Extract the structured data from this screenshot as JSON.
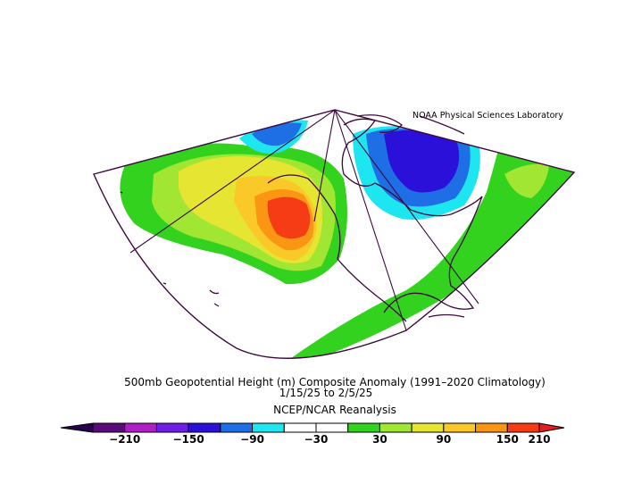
{
  "credit": "NOAA Physical Sciences Laboratory",
  "title_line1": "500mb Geopotential Height (m) Composite Anomaly (1991–2020 Climatology)",
  "title_line2": "1/15/25  to 2/5/25",
  "title_line3": "NCEP/NCAR Reanalysis",
  "colorbar": {
    "colors": [
      "#5a0a7a",
      "#b01ec8",
      "#6e1ee6",
      "#2a10d8",
      "#1e6ee6",
      "#1ee6f0",
      "#ffffff",
      "#ffffff",
      "#32d21e",
      "#a0e632",
      "#e6e632",
      "#fac828",
      "#fa9614",
      "#f53c14"
    ],
    "low_color": "#2a0050",
    "high_color": "#e61e1e",
    "tick_labels": [
      "−210",
      "−150",
      "−90",
      "−30",
      "30",
      "90",
      "150",
      "210"
    ]
  },
  "palette": {
    "red": "#f53c14",
    "orange": "#fa9614",
    "gold": "#fac828",
    "yellow": "#e6e632",
    "lime": "#a0e632",
    "green": "#32d21e",
    "cyan": "#1ee6f0",
    "blue": "#1e6ee6",
    "deepblue": "#2a10d8",
    "coast": "#3c0a3c"
  }
}
